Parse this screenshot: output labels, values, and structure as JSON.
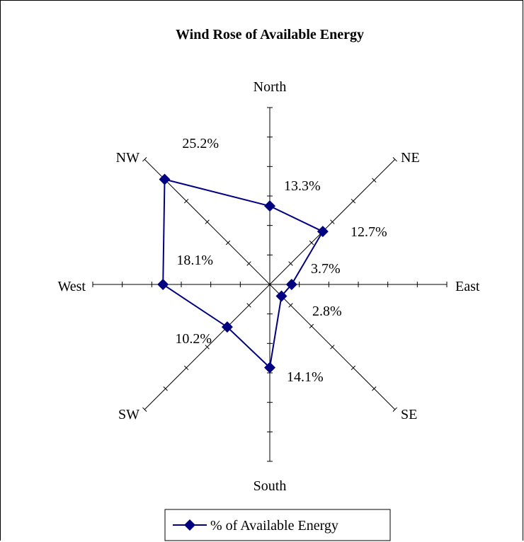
{
  "chart_data": {
    "type": "radar",
    "title": "Wind Rose of Available Energy",
    "directions": [
      "North",
      "NE",
      "East",
      "SE",
      "South",
      "SW",
      "West",
      "NW"
    ],
    "series": [
      {
        "name": "% of Available Energy",
        "values": [
          13.3,
          12.7,
          3.7,
          2.8,
          14.1,
          10.2,
          18.1,
          25.2
        ],
        "value_labels": [
          "13.3%",
          "12.7%",
          "3.7%",
          "2.8%",
          "14.1%",
          "10.2%",
          "18.1%",
          "25.2%"
        ],
        "color": "#000080",
        "marker": "diamond"
      }
    ],
    "axis_range": [
      0,
      30
    ],
    "tick_step": 5,
    "legend_position": "bottom",
    "grid": false
  }
}
